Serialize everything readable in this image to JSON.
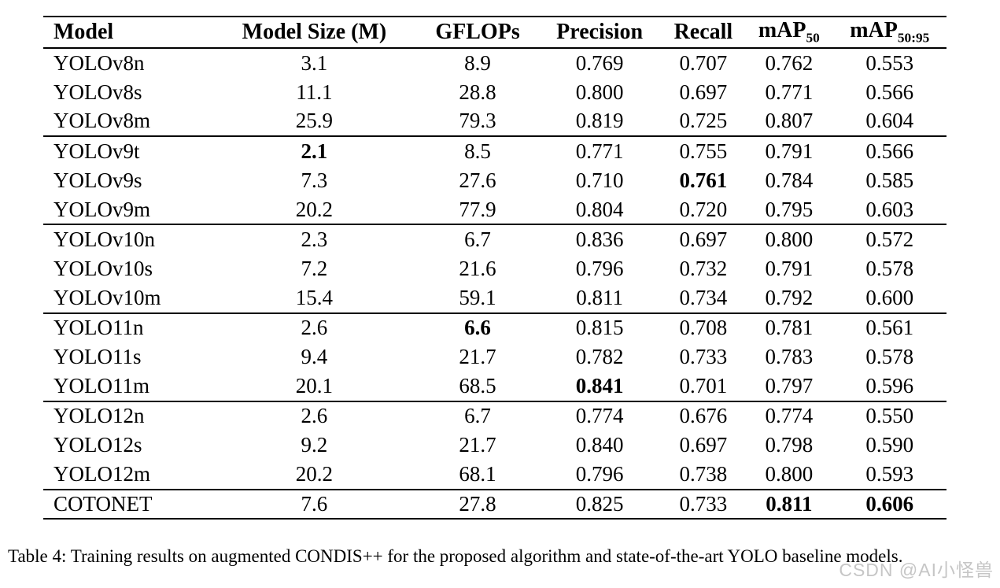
{
  "colors": {
    "background": "#ffffff",
    "text": "#000000",
    "rule": "#000000",
    "watermark": "#c6c6c6"
  },
  "table": {
    "columns": [
      {
        "label": "Model",
        "sub": ""
      },
      {
        "label": "Model Size (M)",
        "sub": ""
      },
      {
        "label": "GFLOPs",
        "sub": ""
      },
      {
        "label": "Precision",
        "sub": ""
      },
      {
        "label": "Recall",
        "sub": ""
      },
      {
        "label": "mAP",
        "sub": "50"
      },
      {
        "label": "mAP",
        "sub": "50:95"
      }
    ],
    "groups": [
      {
        "name": "yolov8",
        "rows": [
          {
            "model": "YOLOv8n",
            "values": [
              "3.1",
              "8.9",
              "0.769",
              "0.707",
              "0.762",
              "0.553"
            ],
            "bold": []
          },
          {
            "model": "YOLOv8s",
            "values": [
              "11.1",
              "28.8",
              "0.800",
              "0.697",
              "0.771",
              "0.566"
            ],
            "bold": []
          },
          {
            "model": "YOLOv8m",
            "values": [
              "25.9",
              "79.3",
              "0.819",
              "0.725",
              "0.807",
              "0.604"
            ],
            "bold": []
          }
        ]
      },
      {
        "name": "yolov9",
        "rows": [
          {
            "model": "YOLOv9t",
            "values": [
              "2.1",
              "8.5",
              "0.771",
              "0.755",
              "0.791",
              "0.566"
            ],
            "bold": [
              0
            ]
          },
          {
            "model": "YOLOv9s",
            "values": [
              "7.3",
              "27.6",
              "0.710",
              "0.761",
              "0.784",
              "0.585"
            ],
            "bold": [
              3
            ]
          },
          {
            "model": "YOLOv9m",
            "values": [
              "20.2",
              "77.9",
              "0.804",
              "0.720",
              "0.795",
              "0.603"
            ],
            "bold": []
          }
        ]
      },
      {
        "name": "yolov10",
        "rows": [
          {
            "model": "YOLOv10n",
            "values": [
              "2.3",
              "6.7",
              "0.836",
              "0.697",
              "0.800",
              "0.572"
            ],
            "bold": []
          },
          {
            "model": "YOLOv10s",
            "values": [
              "7.2",
              "21.6",
              "0.796",
              "0.732",
              "0.791",
              "0.578"
            ],
            "bold": []
          },
          {
            "model": "YOLOv10m",
            "values": [
              "15.4",
              "59.1",
              "0.811",
              "0.734",
              "0.792",
              "0.600"
            ],
            "bold": []
          }
        ]
      },
      {
        "name": "yolo11",
        "rows": [
          {
            "model": "YOLO11n",
            "values": [
              "2.6",
              "6.6",
              "0.815",
              "0.708",
              "0.781",
              "0.561"
            ],
            "bold": [
              1
            ]
          },
          {
            "model": "YOLO11s",
            "values": [
              "9.4",
              "21.7",
              "0.782",
              "0.733",
              "0.783",
              "0.578"
            ],
            "bold": []
          },
          {
            "model": "YOLO11m",
            "values": [
              "20.1",
              "68.5",
              "0.841",
              "0.701",
              "0.797",
              "0.596"
            ],
            "bold": [
              2
            ]
          }
        ]
      },
      {
        "name": "yolo12",
        "rows": [
          {
            "model": "YOLO12n",
            "values": [
              "2.6",
              "6.7",
              "0.774",
              "0.676",
              "0.774",
              "0.550"
            ],
            "bold": []
          },
          {
            "model": "YOLO12s",
            "values": [
              "9.2",
              "21.7",
              "0.840",
              "0.697",
              "0.798",
              "0.590"
            ],
            "bold": []
          },
          {
            "model": "YOLO12m",
            "values": [
              "20.2",
              "68.1",
              "0.796",
              "0.738",
              "0.800",
              "0.593"
            ],
            "bold": []
          }
        ]
      },
      {
        "name": "cotonet",
        "rows": [
          {
            "model": "COTONET",
            "values": [
              "7.6",
              "27.8",
              "0.825",
              "0.733",
              "0.811",
              "0.606"
            ],
            "bold": [
              4,
              5
            ]
          }
        ]
      }
    ]
  },
  "caption": {
    "text": "Table 4: Training results on augmented CONDIS++ for the proposed algorithm and state-of-the-art YOLO baseline models."
  },
  "watermark": {
    "text": "CSDN @AI小怪兽"
  }
}
